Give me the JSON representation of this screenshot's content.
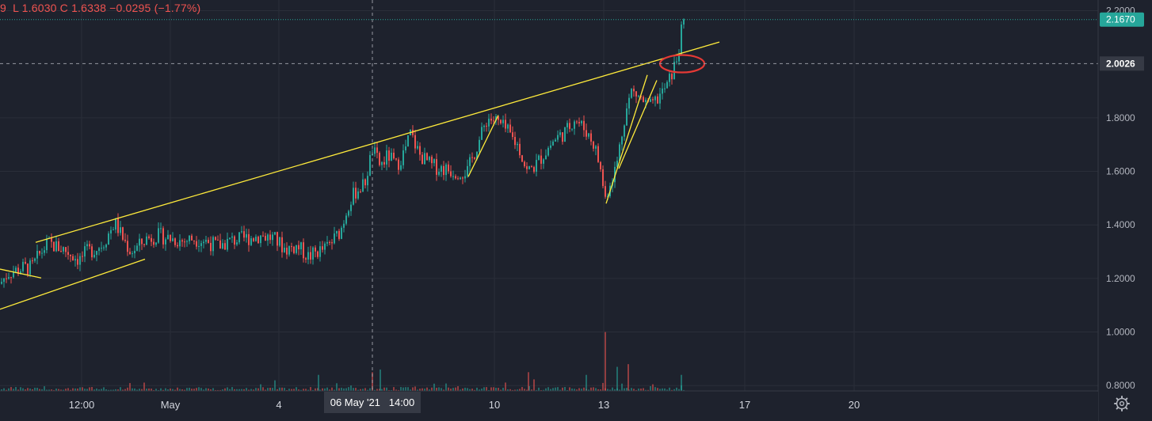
{
  "legend": {
    "open_partial": "9",
    "low": "L 1.6030",
    "close": "C 1.6338",
    "change": "−0.0295 (−1.77%)"
  },
  "colors": {
    "background": "#1e222d",
    "grid": "#2a2e39",
    "up": "#26a69a",
    "down": "#ef5350",
    "trendline": "#ffeb3b",
    "circle": "#e53935",
    "last_price_tag": "#26a69a",
    "crosshair_tag": "#363a45"
  },
  "chart_data": {
    "type": "candlestick",
    "y_axis": {
      "ylim": [
        0.78,
        2.24
      ],
      "ticks": [
        "2.2000",
        "1.8000",
        "1.6000",
        "1.4000",
        "1.2000",
        "1.0000",
        "0.8000"
      ],
      "last_price_label": "2.1670",
      "last_price": 2.167,
      "crosshair_label": "2.0026",
      "crosshair_price": 2.0026
    },
    "x_axis": {
      "ticks": [
        "12:00",
        "May",
        "4",
        "10",
        "13",
        "17",
        "20"
      ],
      "crosshair_label": "06 May '21   14:00"
    },
    "close_path": [
      [
        0,
        1.18
      ],
      [
        10,
        1.22
      ],
      [
        20,
        1.23
      ],
      [
        30,
        1.24
      ],
      [
        40,
        1.24
      ],
      [
        50,
        1.29
      ],
      [
        60,
        1.33
      ],
      [
        70,
        1.32
      ],
      [
        80,
        1.31
      ],
      [
        90,
        1.29
      ],
      [
        100,
        1.27
      ],
      [
        110,
        1.3
      ],
      [
        120,
        1.31
      ],
      [
        130,
        1.33
      ],
      [
        145,
        1.41
      ],
      [
        155,
        1.35
      ],
      [
        165,
        1.3
      ],
      [
        175,
        1.32
      ],
      [
        185,
        1.35
      ],
      [
        200,
        1.36
      ],
      [
        215,
        1.35
      ],
      [
        230,
        1.34
      ],
      [
        245,
        1.35
      ],
      [
        260,
        1.34
      ],
      [
        275,
        1.32
      ],
      [
        290,
        1.34
      ],
      [
        310,
        1.35
      ],
      [
        330,
        1.36
      ],
      [
        345,
        1.35
      ],
      [
        360,
        1.31
      ],
      [
        375,
        1.32
      ],
      [
        390,
        1.28
      ],
      [
        400,
        1.3
      ],
      [
        410,
        1.31
      ],
      [
        420,
        1.34
      ],
      [
        430,
        1.38
      ],
      [
        440,
        1.48
      ],
      [
        450,
        1.53
      ],
      [
        460,
        1.55
      ],
      [
        470,
        1.68
      ],
      [
        480,
        1.62
      ],
      [
        490,
        1.66
      ],
      [
        500,
        1.62
      ],
      [
        510,
        1.67
      ],
      [
        518,
        1.74
      ],
      [
        530,
        1.66
      ],
      [
        545,
        1.62
      ],
      [
        560,
        1.61
      ],
      [
        575,
        1.6
      ],
      [
        590,
        1.6
      ],
      [
        600,
        1.68
      ],
      [
        608,
        1.74
      ],
      [
        615,
        1.8
      ],
      [
        625,
        1.79
      ],
      [
        640,
        1.75
      ],
      [
        655,
        1.69
      ],
      [
        665,
        1.6
      ],
      [
        675,
        1.62
      ],
      [
        685,
        1.66
      ],
      [
        700,
        1.72
      ],
      [
        715,
        1.75
      ],
      [
        725,
        1.8
      ],
      [
        740,
        1.75
      ],
      [
        750,
        1.7
      ],
      [
        757,
        1.62
      ],
      [
        764,
        1.5
      ],
      [
        770,
        1.56
      ],
      [
        778,
        1.62
      ],
      [
        788,
        1.8
      ],
      [
        797,
        1.9
      ],
      [
        806,
        1.88
      ],
      [
        815,
        1.85
      ],
      [
        822,
        1.84
      ],
      [
        832,
        1.88
      ],
      [
        842,
        1.92
      ],
      [
        850,
        1.98
      ],
      [
        856,
        2.04
      ],
      [
        860,
        2.12
      ],
      [
        864,
        2.16
      ]
    ],
    "volume_spikes": [
      [
        402,
        0.06
      ],
      [
        470,
        0.07
      ],
      [
        480,
        0.08
      ],
      [
        667,
        0.07
      ],
      [
        740,
        0.06
      ],
      [
        764,
        0.22
      ],
      [
        779,
        0.09
      ],
      [
        793,
        0.1
      ],
      [
        860,
        0.06
      ]
    ],
    "annotations": [
      {
        "type": "trendline",
        "from": [
          45,
          1.335
        ],
        "to": [
          908,
          2.083
        ]
      },
      {
        "type": "trendline",
        "from": [
          0,
          1.085
        ],
        "to": [
          183,
          1.272
        ]
      },
      {
        "type": "trendline",
        "from": [
          0,
          1.235
        ],
        "to": [
          52,
          1.202
        ]
      },
      {
        "type": "trendline",
        "from": [
          591,
          1.58
        ],
        "to": [
          629,
          1.81
        ]
      },
      {
        "type": "trendline",
        "from": [
          765,
          1.48
        ],
        "to": [
          817,
          1.96
        ]
      },
      {
        "type": "trendline",
        "from": [
          781,
          1.61
        ],
        "to": [
          829,
          1.94
        ]
      },
      {
        "type": "circle",
        "at": [
          861,
          2.002
        ],
        "rx": 28,
        "ry": 11
      }
    ]
  }
}
